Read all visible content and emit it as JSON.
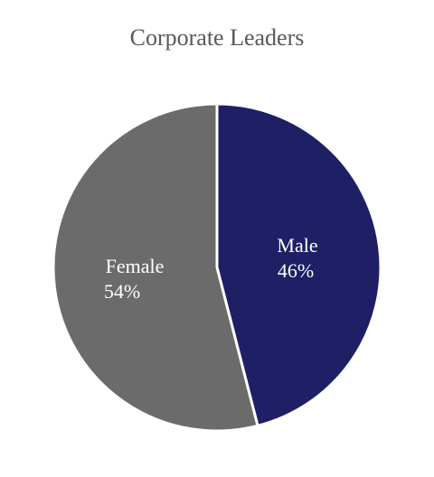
{
  "chart_data": {
    "type": "pie",
    "title": "Corporate Leaders",
    "slices": [
      {
        "name": "Male",
        "label": "46%",
        "value": 46,
        "color": "#1f1f66"
      },
      {
        "name": "Female",
        "label": "54%",
        "value": 54,
        "color": "#6b6b6b"
      }
    ],
    "start_angle": "12 o'clock",
    "direction": "clockwise"
  }
}
